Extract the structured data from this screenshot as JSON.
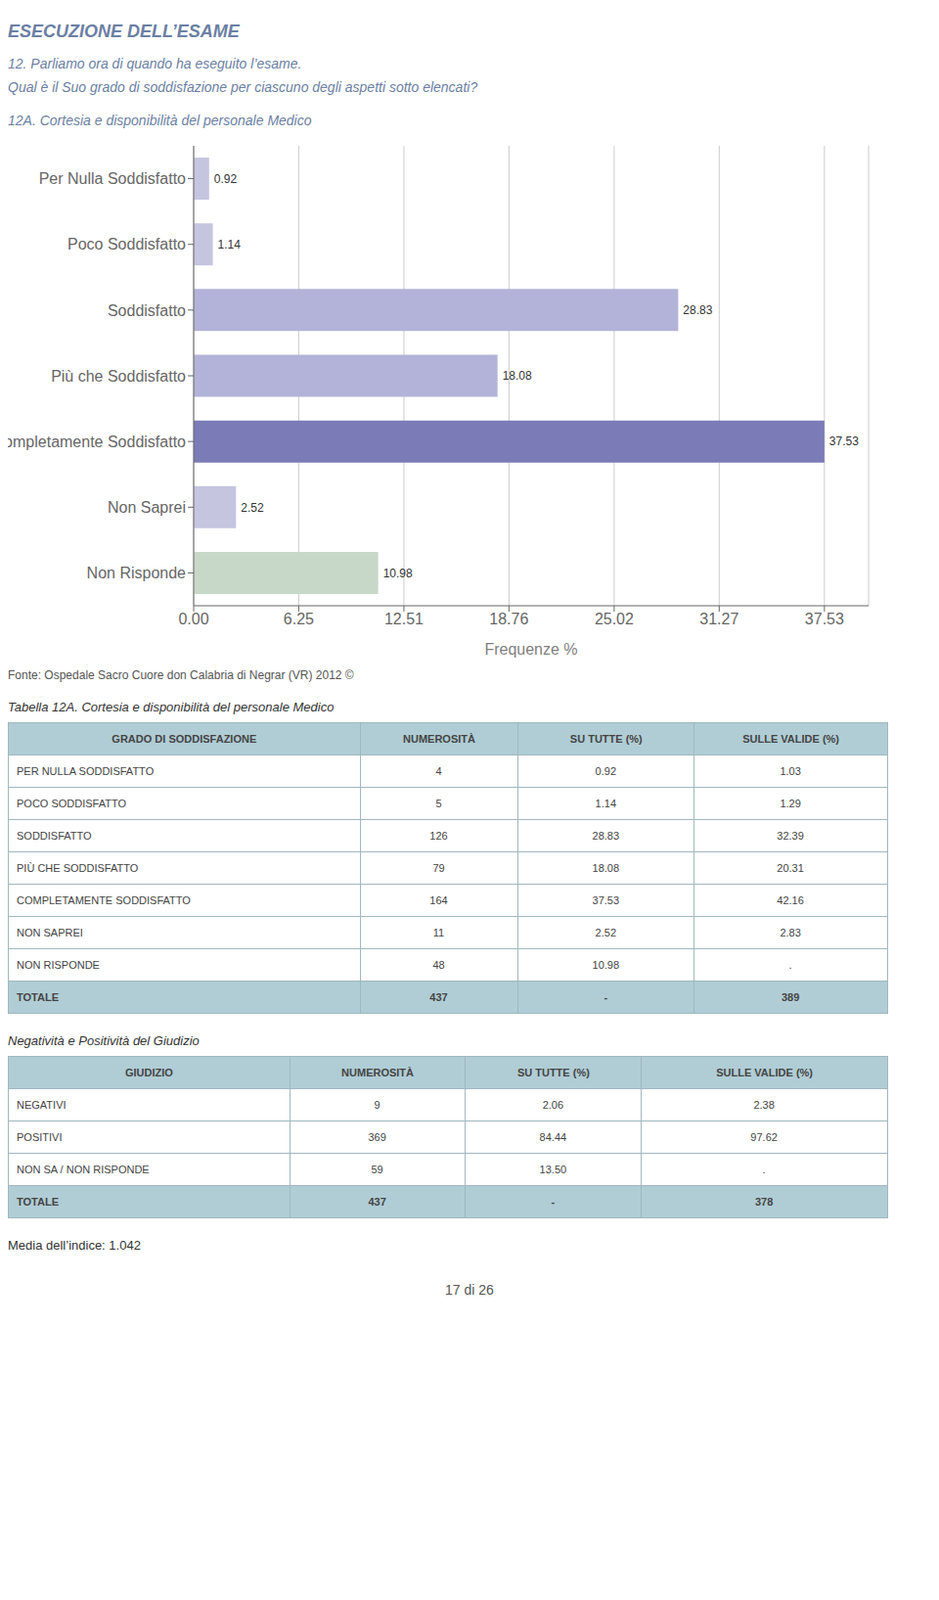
{
  "chart_data": {
    "type": "bar",
    "orientation": "horizontal",
    "subtitle": [
      "ESECUZIONE DELL’ESAME",
      "12. Parliamo ora di quando ha eseguito l’esame.",
      "Qual è il Suo grado di soddisfazione per ciascuno degli aspetti sotto elencati?"
    ],
    "title": "12A. Cortesia e disponibilità del personale Medico",
    "categories": [
      "Per Nulla Soddisfatto",
      "Poco Soddisfatto",
      "Soddisfatto",
      "Più che Soddisfatto",
      "Completamente Soddisfatto",
      "Non Saprei",
      "Non Risponde"
    ],
    "values": [
      0.92,
      1.14,
      28.83,
      18.08,
      37.53,
      2.52,
      10.98
    ],
    "colors": [
      "#c5c5e0",
      "#c5c5e0",
      "#b3b3d9",
      "#b3b3d9",
      "#7b7bb8",
      "#c5c5e0",
      "#c8d8c8"
    ],
    "xlim": [
      0,
      40.1571
    ],
    "xticks": [
      {
        "value": 0,
        "label": "0.00"
      },
      6.25,
      12.51,
      18.76,
      25.02,
      31.27,
      37.53
    ],
    "xlabel": "Frequenze %",
    "grid": true,
    "data_labels": true,
    "source": "Fonte: Ospedale Sacro Cuore don Calabria di Negrar (VR) 2012 ©",
    "tables": [
      {
        "title": "Tabella 12A. Cortesia e disponibilità del personale Medico",
        "headers": [
          "GRADO DI SODDISFAZIONE",
          "NUMEROSITÀ",
          "SU TUTTE (%)",
          "SULLE VALIDE (%)"
        ],
        "rows": [
          [
            "PER NULLA SODDISFATTO",
            "4",
            "0.92",
            "1.03"
          ],
          [
            "POCO SODDISFATTO",
            "5",
            "1.14",
            "1.29"
          ],
          [
            "SODDISFATTO",
            "126",
            "28.83",
            "32.39"
          ],
          [
            "PIÙ CHE SODDISFATTO",
            "79",
            "18.08",
            "20.31"
          ],
          [
            "COMPLETAMENTE SODDISFATTO",
            "164",
            "37.53",
            "42.16"
          ],
          [
            "NON SAPREI",
            "11",
            "2.52",
            "2.83"
          ],
          [
            "NON RISPONDE",
            "48",
            "10.98",
            "."
          ],
          [
            "TOTALE",
            "437",
            "-",
            "389"
          ]
        ]
      },
      {
        "title": "Negatività e Positività del Giudizio",
        "headers": [
          "GIUDIZIO",
          "NUMEROSITÀ",
          "SU TUTTE (%)",
          "SULLE VALIDE (%)"
        ],
        "rows": [
          [
            "NEGATIVI",
            "9",
            "2.06",
            "2.38"
          ],
          [
            "POSITIVI",
            "369",
            "84.44",
            "97.62"
          ],
          [
            "NON SA / NON RISPONDE",
            "59",
            "13.50",
            "."
          ],
          [
            "TOTALE",
            "437",
            "-",
            "378"
          ]
        ]
      }
    ],
    "annotations": [
      "Media dell’indice: 1.042",
      "17 di 26"
    ]
  }
}
